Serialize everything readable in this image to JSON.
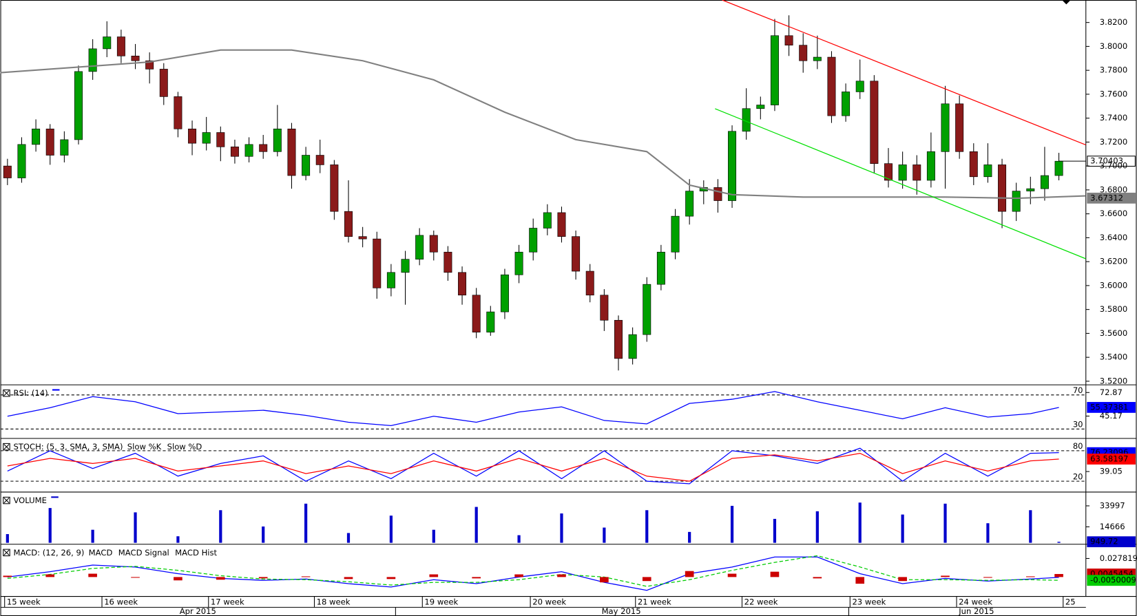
{
  "chart_data": [
    {
      "type": "candlestick",
      "xlim": [
        -0.5,
        75.9
      ],
      "ylim": [
        3.5176,
        3.8388
      ],
      "yticks": [
        {
          "value": 3.52,
          "label": "3.5200"
        },
        {
          "value": 3.54,
          "label": "3.5400"
        },
        {
          "value": 3.56,
          "label": "3.5600"
        },
        {
          "value": 3.58,
          "label": "3.5800"
        },
        {
          "value": 3.6,
          "label": "3.6000"
        },
        {
          "value": 3.62,
          "label": "3.6200"
        },
        {
          "value": 3.64,
          "label": "3.6400"
        },
        {
          "value": 3.66,
          "label": "3.6600"
        },
        {
          "value": 3.68,
          "label": "3.6800"
        },
        {
          "value": 3.7,
          "label": "3.7000"
        },
        {
          "value": 3.72,
          "label": "3.7200"
        },
        {
          "value": 3.74,
          "label": "3.7400"
        },
        {
          "value": 3.76,
          "label": "3.7600"
        },
        {
          "value": 3.78,
          "label": "3.7800"
        },
        {
          "value": 3.8,
          "label": "3.8000"
        },
        {
          "value": 3.82,
          "label": "3.8200"
        }
      ],
      "xticks": [
        {
          "value": -0.2,
          "label": "15 week"
        },
        {
          "value": 6.65,
          "label": "16 week"
        },
        {
          "value": 14.15,
          "label": "17 week"
        },
        {
          "value": 21.6,
          "label": "18 week"
        },
        {
          "value": 29.2,
          "label": "19 week"
        },
        {
          "value": 36.8,
          "label": "20 week"
        },
        {
          "value": 44.2,
          "label": "21 week"
        },
        {
          "value": 51.7,
          "label": "22 week"
        },
        {
          "value": 59.3,
          "label": "23 week"
        },
        {
          "value": 66.8,
          "label": "24 week"
        },
        {
          "value": 74.3,
          "label": "25"
        }
      ],
      "months": [
        {
          "value": 13.4,
          "label": "Apr 2015"
        },
        {
          "value": 43.2,
          "label": "May 2015"
        },
        {
          "value": 68.2,
          "label": "Jun 2015"
        }
      ],
      "up_color": "#00a000",
      "down_color": "#8b1a1a",
      "open": [
        3.7,
        3.69,
        3.718,
        3.731,
        3.709,
        3.722,
        3.779,
        3.798,
        3.808,
        3.792,
        3.788,
        3.781,
        3.758,
        3.731,
        3.719,
        3.728,
        3.716,
        3.708,
        3.718,
        3.712,
        3.731,
        3.692,
        3.709,
        3.701,
        3.662,
        3.641,
        3.639,
        3.598,
        3.611,
        3.622,
        3.642,
        3.628,
        3.611,
        3.592,
        3.561,
        3.578,
        3.609,
        3.628,
        3.648,
        3.661,
        3.641,
        3.612,
        3.592,
        3.571,
        3.539,
        3.559,
        3.601,
        3.628,
        3.658,
        3.679,
        3.682,
        3.671,
        3.729,
        3.748,
        3.751,
        3.809,
        3.801,
        3.788,
        3.791,
        3.742,
        3.762,
        3.771,
        3.702,
        3.688,
        3.701,
        3.688,
        3.712,
        3.752,
        3.712,
        3.691,
        3.701,
        3.662,
        3.679,
        3.681,
        3.692
      ],
      "high": [
        3.706,
        3.724,
        3.739,
        3.735,
        3.729,
        3.784,
        3.806,
        3.821,
        3.814,
        3.802,
        3.795,
        3.786,
        3.762,
        3.738,
        3.741,
        3.733,
        3.722,
        3.724,
        3.726,
        3.751,
        3.736,
        3.716,
        3.722,
        3.705,
        3.688,
        3.649,
        3.645,
        3.618,
        3.629,
        3.648,
        3.646,
        3.633,
        3.616,
        3.598,
        3.583,
        3.614,
        3.634,
        3.656,
        3.668,
        3.666,
        3.646,
        3.618,
        3.597,
        3.575,
        3.565,
        3.607,
        3.634,
        3.664,
        3.689,
        3.688,
        3.689,
        3.734,
        3.765,
        3.758,
        3.823,
        3.826,
        3.811,
        3.809,
        3.796,
        3.769,
        3.789,
        3.776,
        3.715,
        3.712,
        3.709,
        3.728,
        3.767,
        3.759,
        3.719,
        3.719,
        3.706,
        3.686,
        3.691,
        3.716,
        3.711
      ],
      "low": [
        3.684,
        3.686,
        3.712,
        3.701,
        3.703,
        3.718,
        3.772,
        3.791,
        3.786,
        3.781,
        3.769,
        3.751,
        3.724,
        3.709,
        3.713,
        3.704,
        3.702,
        3.703,
        3.706,
        3.708,
        3.681,
        3.688,
        3.694,
        3.655,
        3.636,
        3.632,
        3.589,
        3.591,
        3.584,
        3.617,
        3.621,
        3.604,
        3.584,
        3.556,
        3.558,
        3.572,
        3.602,
        3.621,
        3.642,
        3.636,
        3.605,
        3.586,
        3.562,
        3.529,
        3.534,
        3.553,
        3.596,
        3.622,
        3.651,
        3.668,
        3.661,
        3.665,
        3.722,
        3.739,
        3.746,
        3.792,
        3.778,
        3.781,
        3.736,
        3.737,
        3.756,
        3.694,
        3.682,
        3.681,
        3.676,
        3.682,
        3.681,
        3.706,
        3.684,
        3.686,
        3.648,
        3.654,
        3.668,
        3.671,
        3.688
      ],
      "close": [
        3.69,
        3.718,
        3.731,
        3.709,
        3.722,
        3.779,
        3.798,
        3.808,
        3.792,
        3.788,
        3.781,
        3.758,
        3.731,
        3.719,
        3.728,
        3.716,
        3.708,
        3.718,
        3.712,
        3.731,
        3.692,
        3.709,
        3.701,
        3.662,
        3.641,
        3.639,
        3.598,
        3.611,
        3.622,
        3.642,
        3.628,
        3.611,
        3.592,
        3.561,
        3.578,
        3.609,
        3.628,
        3.648,
        3.661,
        3.641,
        3.612,
        3.592,
        3.571,
        3.539,
        3.559,
        3.601,
        3.628,
        3.658,
        3.679,
        3.682,
        3.671,
        3.729,
        3.748,
        3.751,
        3.809,
        3.801,
        3.788,
        3.791,
        3.742,
        3.762,
        3.771,
        3.702,
        3.688,
        3.701,
        3.688,
        3.712,
        3.752,
        3.712,
        3.691,
        3.701,
        3.662,
        3.679,
        3.681,
        3.692,
        3.704
      ],
      "moving_average": {
        "color": "#808080",
        "x": [
          -0.5,
          10,
          15,
          20,
          25,
          30,
          35,
          40,
          45,
          48,
          51,
          56,
          61,
          66,
          71,
          75.9
        ],
        "values": [
          3.778,
          3.787,
          3.797,
          3.797,
          3.788,
          3.772,
          3.745,
          3.722,
          3.712,
          3.684,
          3.676,
          3.674,
          3.674,
          3.674,
          3.673,
          3.675
        ]
      },
      "trendlines": [
        {
          "color": "#ff0000",
          "x": [
            50.3,
            75.9
          ],
          "values": [
            3.8388,
            3.7176
          ]
        },
        {
          "color": "#00e000",
          "x": [
            49.8,
            75.9
          ],
          "values": [
            3.7479,
            3.6224
          ]
        }
      ],
      "last_price": 3.70403,
      "ma_last": 3.67312
    },
    {
      "type": "line",
      "title": "RSI: (14)",
      "ylim": [
        20.6,
        80.2
      ],
      "yticks": [
        72.87,
        45.17
      ],
      "levels": [
        70,
        30
      ],
      "x": [
        0,
        3,
        6,
        9,
        12,
        15,
        18,
        21,
        24,
        27,
        30,
        33,
        36,
        39,
        42,
        45,
        48,
        51,
        54,
        57,
        60,
        63,
        66,
        69,
        72,
        74
      ],
      "series": [
        {
          "color": "#0000ff",
          "values": [
            45,
            55,
            68,
            62,
            48,
            50,
            52,
            46,
            38,
            34,
            45,
            38,
            50,
            56,
            40,
            36,
            60,
            65,
            74,
            62,
            52,
            42,
            55,
            44,
            48,
            55.37381
          ]
        }
      ]
    },
    {
      "type": "line",
      "title": "STOCH: (5, 3, SMA, 3, SMA)",
      "ylim": [
        1.4,
        101.4
      ],
      "yticks": [
        39.05
      ],
      "levels": [
        80,
        20
      ],
      "x": [
        0,
        3,
        6,
        9,
        12,
        15,
        18,
        21,
        24,
        27,
        30,
        33,
        36,
        39,
        42,
        45,
        48,
        51,
        54,
        57,
        60,
        63,
        66,
        69,
        72,
        74
      ],
      "series": [
        {
          "name": "Slow %K",
          "color": "#0000ff",
          "values": [
            40,
            80,
            45,
            75,
            30,
            55,
            70,
            20,
            60,
            25,
            75,
            30,
            80,
            25,
            80,
            20,
            15,
            80,
            70,
            55,
            85,
            20,
            75,
            30,
            75,
            76.23096
          ]
        },
        {
          "name": "Slow %D",
          "color": "#ff0000",
          "values": [
            50,
            65,
            55,
            65,
            40,
            50,
            60,
            35,
            50,
            35,
            60,
            40,
            65,
            40,
            65,
            30,
            20,
            65,
            72,
            60,
            75,
            35,
            60,
            40,
            60,
            63.58197
          ]
        }
      ]
    },
    {
      "type": "bar",
      "title": "VOLUME",
      "ylim": [
        0,
        45330
      ],
      "yticks": [
        33997,
        14666
      ],
      "x": [
        0,
        3,
        6,
        9,
        12,
        15,
        18,
        21,
        24,
        27,
        30,
        33,
        36,
        39,
        42,
        45,
        48,
        51,
        54,
        57,
        60,
        63,
        66,
        69,
        72,
        74
      ],
      "series": [
        {
          "color": "#0000cc",
          "values": [
            8000,
            32000,
            12000,
            28000,
            6000,
            30000,
            15000,
            36000,
            9000,
            25000,
            12000,
            33000,
            7000,
            27000,
            14000,
            30000,
            10000,
            34000,
            22000,
            29000,
            37000,
            26000,
            36000,
            18000,
            30000,
            949.72
          ]
        }
      ]
    },
    {
      "type": "combo",
      "title": "MACD: (12, 26, 9)",
      "ylim": [
        -0.028,
        0.047
      ],
      "yticks": [
        0.0278195
      ],
      "x": [
        0,
        3,
        6,
        9,
        12,
        15,
        18,
        21,
        24,
        27,
        30,
        33,
        36,
        39,
        42,
        45,
        48,
        51,
        54,
        57,
        60,
        63,
        66,
        69,
        72,
        74
      ],
      "series": [
        {
          "name": "MACD",
          "color": "#0000ff",
          "style": "line",
          "values": [
            0,
            0.008,
            0.018,
            0.015,
            0.005,
            -0.002,
            -0.005,
            -0.003,
            -0.01,
            -0.015,
            -0.004,
            -0.01,
            0,
            0.008,
            -0.008,
            -0.02,
            0.005,
            0.015,
            0.03,
            0.03,
            0.005,
            -0.01,
            -0.002,
            -0.006,
            -0.003,
            -0.0004555
          ]
        },
        {
          "name": "MACD Signal",
          "color": "#00cc00",
          "style": "dashed",
          "values": [
            -0.002,
            0.004,
            0.013,
            0.016,
            0.01,
            0.002,
            -0.003,
            -0.004,
            -0.007,
            -0.012,
            -0.008,
            -0.008,
            -0.004,
            0.004,
            0,
            -0.014,
            -0.004,
            0.01,
            0.022,
            0.032,
            0.015,
            -0.004,
            -0.004,
            -0.005,
            -0.004,
            -0.0050009
          ]
        },
        {
          "name": "MACD Hist",
          "color": "#cc0000",
          "style": "bar",
          "values": [
            0.002,
            0.004,
            0.005,
            -0.001,
            -0.005,
            -0.004,
            -0.002,
            0.001,
            -0.003,
            -0.003,
            0.004,
            -0.002,
            0.004,
            0.004,
            -0.008,
            -0.006,
            0.009,
            0.005,
            0.008,
            -0.002,
            -0.01,
            -0.006,
            0.002,
            -0.001,
            0.001,
            0.0045454
          ]
        }
      ]
    }
  ]
}
